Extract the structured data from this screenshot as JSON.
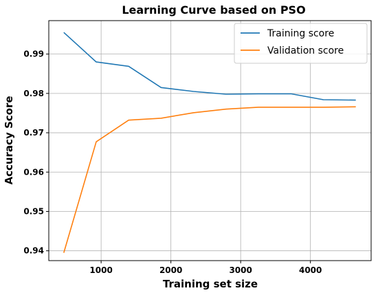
{
  "chart_data": {
    "type": "line",
    "title": "Learning Curve based on PSO",
    "xlabel": "Training set size",
    "ylabel": "Accuracy Score",
    "xlim": [
      250,
      4870
    ],
    "ylim": [
      0.9375,
      0.9985
    ],
    "xticks": [
      1000,
      2000,
      3000,
      4000
    ],
    "yticks": [
      0.94,
      0.95,
      0.96,
      0.97,
      0.98,
      0.99
    ],
    "xtick_labels": [
      "1000",
      "2000",
      "3000",
      "4000"
    ],
    "ytick_labels": [
      "0.94",
      "0.95",
      "0.96",
      "0.97",
      "0.98",
      "0.99"
    ],
    "grid": true,
    "legend_position": "top-right",
    "x": [
      465,
      930,
      1395,
      1860,
      2325,
      2790,
      3255,
      3720,
      4185,
      4650
    ],
    "series": [
      {
        "name": "Training score",
        "color": "#1f77b4",
        "values": [
          0.9955,
          0.988,
          0.9869,
          0.9815,
          0.9805,
          0.9798,
          0.9799,
          0.9799,
          0.9784,
          0.9783
        ]
      },
      {
        "name": "Validation score",
        "color": "#ff7f0e",
        "values": [
          0.9395,
          0.9677,
          0.9732,
          0.9737,
          0.9751,
          0.976,
          0.9765,
          0.9765,
          0.9765,
          0.9766
        ]
      }
    ]
  }
}
